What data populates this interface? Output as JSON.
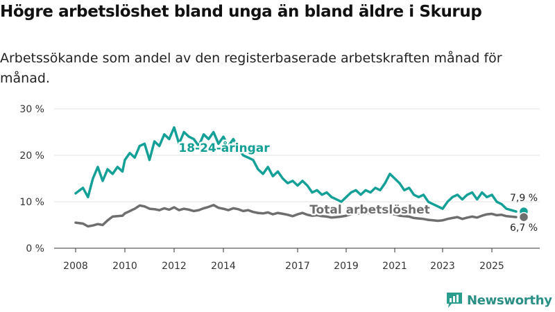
{
  "title": "Högre arbetslöshet bland unga än bland äldre i Skurup",
  "subtitle": "Arbetssökande som andel av den registerbaserade arbetskraften månad för månad.",
  "brand": {
    "name": "Newsworthy",
    "icon": "bar-chart-logo-icon",
    "color": "#2a9d8f"
  },
  "chart_data": {
    "type": "line",
    "title": "Högre arbetslöshet bland unga än bland äldre i Skurup",
    "subtitle": "Arbetssökande som andel av den registerbaserade arbetskraften månad för månad.",
    "xlabel": "",
    "ylabel": "",
    "xlim": [
      2007.5,
      2026.5
    ],
    "ylim": [
      0,
      30
    ],
    "x_ticks": [
      2008,
      2010,
      2012,
      2014,
      2017,
      2019,
      2021,
      2023,
      2025
    ],
    "y_ticks": [
      0,
      10,
      20,
      30
    ],
    "y_tick_labels": [
      "0 %",
      "10 %",
      "20 %",
      "30 %"
    ],
    "grid": "horizontal",
    "legend": "inline labels",
    "series": [
      {
        "name": "18-24-åringar",
        "color": "#14a096",
        "end_label": "7,9 %",
        "points": [
          [
            2008.0,
            11.8
          ],
          [
            2008.3,
            13.0
          ],
          [
            2008.5,
            11.0
          ],
          [
            2008.7,
            15.0
          ],
          [
            2008.9,
            17.5
          ],
          [
            2009.1,
            14.5
          ],
          [
            2009.3,
            17.0
          ],
          [
            2009.5,
            16.0
          ],
          [
            2009.7,
            17.5
          ],
          [
            2009.9,
            16.5
          ],
          [
            2010.0,
            19.0
          ],
          [
            2010.2,
            20.5
          ],
          [
            2010.4,
            19.5
          ],
          [
            2010.6,
            22.0
          ],
          [
            2010.8,
            22.5
          ],
          [
            2011.0,
            19.0
          ],
          [
            2011.2,
            23.0
          ],
          [
            2011.4,
            22.0
          ],
          [
            2011.6,
            24.5
          ],
          [
            2011.8,
            23.5
          ],
          [
            2012.0,
            26.0
          ],
          [
            2012.2,
            22.5
          ],
          [
            2012.4,
            25.0
          ],
          [
            2012.6,
            24.0
          ],
          [
            2012.8,
            23.5
          ],
          [
            2013.0,
            22.0
          ],
          [
            2013.2,
            24.5
          ],
          [
            2013.4,
            23.5
          ],
          [
            2013.6,
            25.0
          ],
          [
            2013.8,
            22.5
          ],
          [
            2014.0,
            24.0
          ],
          [
            2014.2,
            22.0
          ],
          [
            2014.4,
            23.5
          ],
          [
            2014.6,
            21.5
          ],
          [
            2014.8,
            20.0
          ],
          [
            2015.0,
            19.5
          ],
          [
            2015.2,
            19.0
          ],
          [
            2015.4,
            17.0
          ],
          [
            2015.6,
            16.0
          ],
          [
            2015.8,
            17.5
          ],
          [
            2016.0,
            15.5
          ],
          [
            2016.2,
            16.5
          ],
          [
            2016.4,
            15.0
          ],
          [
            2016.6,
            14.0
          ],
          [
            2016.8,
            14.5
          ],
          [
            2017.0,
            13.5
          ],
          [
            2017.2,
            14.5
          ],
          [
            2017.4,
            13.5
          ],
          [
            2017.6,
            12.0
          ],
          [
            2017.8,
            12.5
          ],
          [
            2018.0,
            11.5
          ],
          [
            2018.2,
            12.0
          ],
          [
            2018.4,
            11.0
          ],
          [
            2018.6,
            10.5
          ],
          [
            2018.8,
            10.0
          ],
          [
            2019.0,
            11.0
          ],
          [
            2019.2,
            12.0
          ],
          [
            2019.4,
            12.5
          ],
          [
            2019.6,
            11.5
          ],
          [
            2019.8,
            12.5
          ],
          [
            2020.0,
            12.0
          ],
          [
            2020.2,
            13.0
          ],
          [
            2020.4,
            12.5
          ],
          [
            2020.6,
            14.0
          ],
          [
            2020.8,
            16.0
          ],
          [
            2021.0,
            15.0
          ],
          [
            2021.2,
            14.0
          ],
          [
            2021.4,
            12.5
          ],
          [
            2021.6,
            13.0
          ],
          [
            2021.8,
            11.5
          ],
          [
            2022.0,
            11.0
          ],
          [
            2022.2,
            11.5
          ],
          [
            2022.4,
            10.0
          ],
          [
            2022.6,
            9.5
          ],
          [
            2022.8,
            9.0
          ],
          [
            2023.0,
            8.5
          ],
          [
            2023.2,
            10.0
          ],
          [
            2023.4,
            11.0
          ],
          [
            2023.6,
            11.5
          ],
          [
            2023.8,
            10.5
          ],
          [
            2024.0,
            11.5
          ],
          [
            2024.2,
            12.0
          ],
          [
            2024.4,
            10.5
          ],
          [
            2024.6,
            12.0
          ],
          [
            2024.8,
            11.0
          ],
          [
            2025.0,
            11.5
          ],
          [
            2025.2,
            10.0
          ],
          [
            2025.4,
            9.5
          ],
          [
            2025.6,
            8.5
          ],
          [
            2025.8,
            8.2
          ],
          [
            2026.0,
            7.9
          ]
        ]
      },
      {
        "name": "Total arbetslöshet",
        "color": "#6e6e6e",
        "end_label": "6,7 %",
        "points": [
          [
            2008.0,
            5.5
          ],
          [
            2008.3,
            5.3
          ],
          [
            2008.5,
            4.7
          ],
          [
            2008.7,
            4.9
          ],
          [
            2008.9,
            5.2
          ],
          [
            2009.1,
            5.0
          ],
          [
            2009.3,
            6.0
          ],
          [
            2009.5,
            6.8
          ],
          [
            2009.7,
            6.9
          ],
          [
            2009.9,
            7.0
          ],
          [
            2010.0,
            7.5
          ],
          [
            2010.2,
            8.0
          ],
          [
            2010.4,
            8.5
          ],
          [
            2010.6,
            9.2
          ],
          [
            2010.8,
            9.0
          ],
          [
            2011.0,
            8.5
          ],
          [
            2011.2,
            8.4
          ],
          [
            2011.4,
            8.2
          ],
          [
            2011.6,
            8.6
          ],
          [
            2011.8,
            8.3
          ],
          [
            2012.0,
            8.8
          ],
          [
            2012.2,
            8.2
          ],
          [
            2012.4,
            8.5
          ],
          [
            2012.6,
            8.3
          ],
          [
            2012.8,
            8.0
          ],
          [
            2013.0,
            8.2
          ],
          [
            2013.2,
            8.6
          ],
          [
            2013.4,
            8.9
          ],
          [
            2013.6,
            9.3
          ],
          [
            2013.8,
            8.7
          ],
          [
            2014.0,
            8.5
          ],
          [
            2014.2,
            8.2
          ],
          [
            2014.4,
            8.6
          ],
          [
            2014.6,
            8.4
          ],
          [
            2014.8,
            8.0
          ],
          [
            2015.0,
            8.2
          ],
          [
            2015.2,
            7.8
          ],
          [
            2015.4,
            7.6
          ],
          [
            2015.6,
            7.5
          ],
          [
            2015.8,
            7.7
          ],
          [
            2016.0,
            7.3
          ],
          [
            2016.2,
            7.6
          ],
          [
            2016.4,
            7.4
          ],
          [
            2016.6,
            7.2
          ],
          [
            2016.8,
            6.9
          ],
          [
            2017.0,
            7.3
          ],
          [
            2017.2,
            7.6
          ],
          [
            2017.4,
            7.2
          ],
          [
            2017.6,
            7.0
          ],
          [
            2017.8,
            7.1
          ],
          [
            2018.0,
            6.9
          ],
          [
            2018.2,
            6.8
          ],
          [
            2018.4,
            6.6
          ],
          [
            2018.6,
            6.7
          ],
          [
            2018.8,
            6.8
          ],
          [
            2019.0,
            7.0
          ],
          [
            2019.2,
            7.3
          ],
          [
            2019.4,
            7.5
          ],
          [
            2019.6,
            7.4
          ],
          [
            2019.8,
            7.6
          ],
          [
            2020.0,
            7.5
          ],
          [
            2020.2,
            7.7
          ],
          [
            2020.4,
            7.6
          ],
          [
            2020.6,
            7.8
          ],
          [
            2020.8,
            7.5
          ],
          [
            2021.0,
            7.3
          ],
          [
            2021.2,
            7.0
          ],
          [
            2021.4,
            6.9
          ],
          [
            2021.6,
            6.8
          ],
          [
            2021.8,
            6.5
          ],
          [
            2022.0,
            6.4
          ],
          [
            2022.2,
            6.3
          ],
          [
            2022.4,
            6.1
          ],
          [
            2022.6,
            6.0
          ],
          [
            2022.8,
            5.9
          ],
          [
            2023.0,
            6.0
          ],
          [
            2023.2,
            6.3
          ],
          [
            2023.4,
            6.5
          ],
          [
            2023.6,
            6.7
          ],
          [
            2023.8,
            6.3
          ],
          [
            2024.0,
            6.6
          ],
          [
            2024.2,
            6.8
          ],
          [
            2024.4,
            6.6
          ],
          [
            2024.6,
            7.0
          ],
          [
            2024.8,
            7.3
          ],
          [
            2025.0,
            7.4
          ],
          [
            2025.2,
            7.1
          ],
          [
            2025.4,
            7.2
          ],
          [
            2025.6,
            6.9
          ],
          [
            2025.8,
            6.8
          ],
          [
            2026.0,
            6.7
          ]
        ]
      }
    ]
  }
}
